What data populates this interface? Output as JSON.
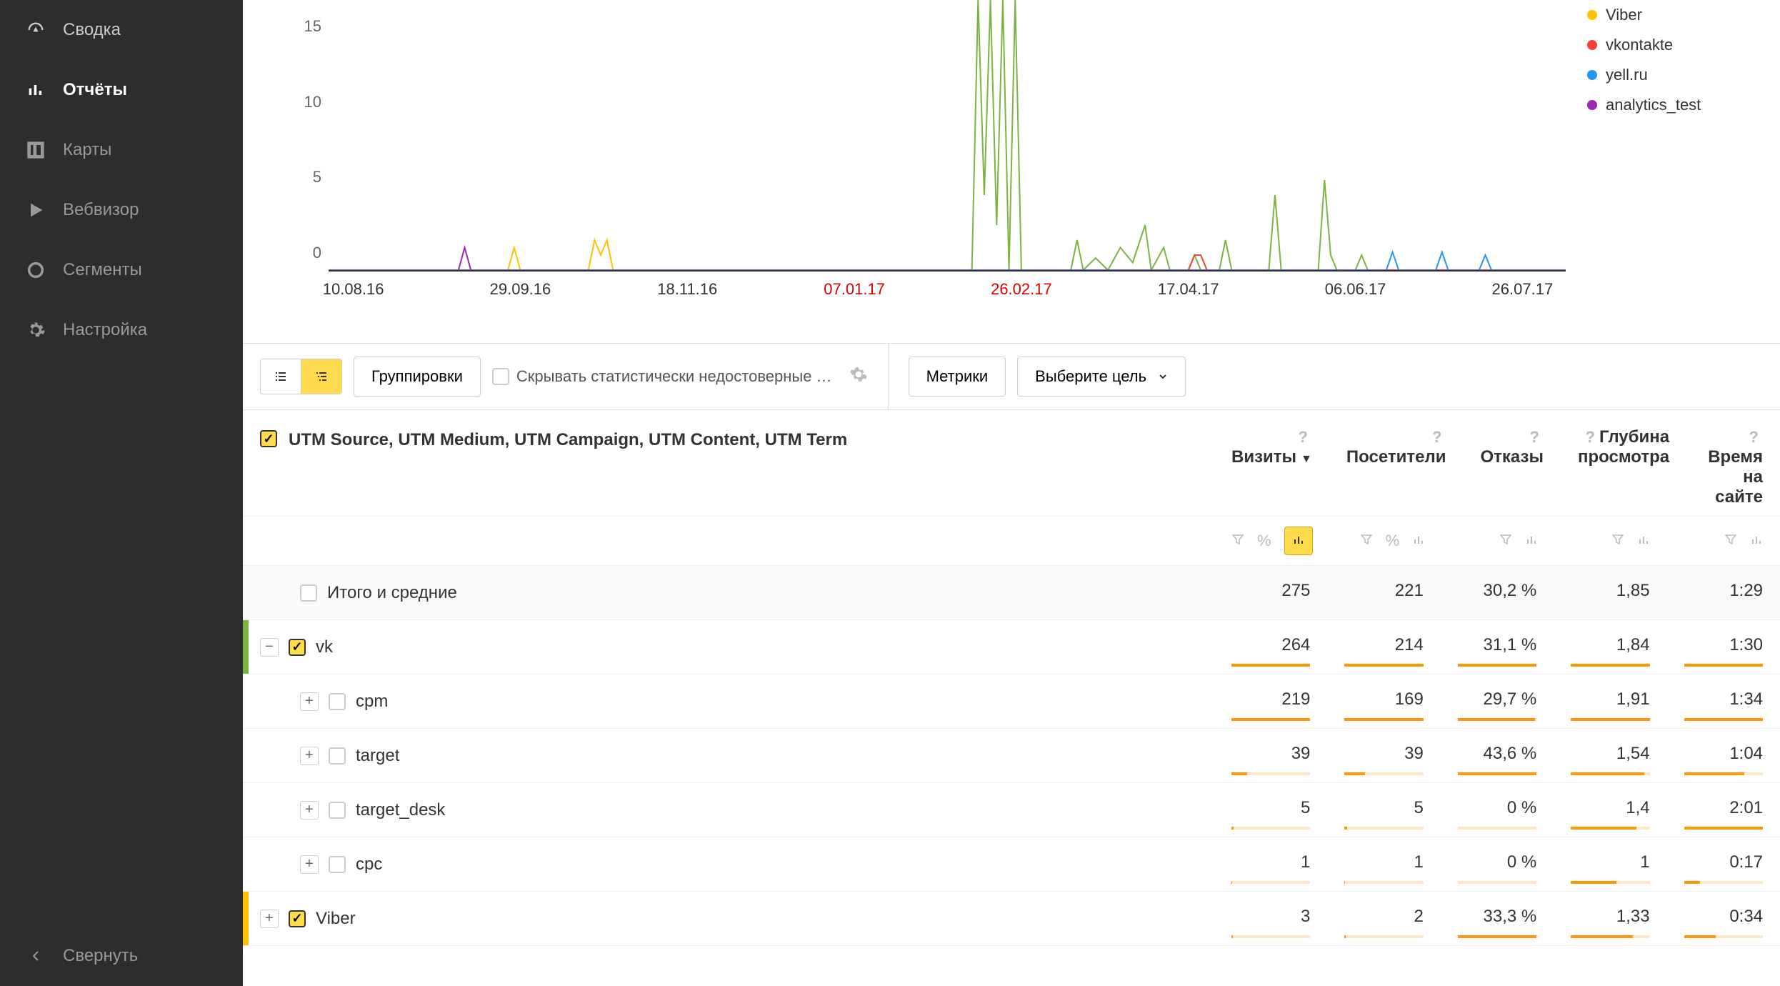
{
  "sidebar": {
    "items": [
      {
        "label": "Сводка",
        "icon": "gauge"
      },
      {
        "label": "Отчёты",
        "icon": "bars",
        "active": true
      },
      {
        "label": "Карты",
        "icon": "layout"
      },
      {
        "label": "Вебвизор",
        "icon": "play"
      },
      {
        "label": "Сегменты",
        "icon": "donut"
      },
      {
        "label": "Настройка",
        "icon": "gear"
      }
    ],
    "collapse_label": "Свернуть"
  },
  "chart": {
    "type": "line",
    "background_color": "#ffffff",
    "axis_color": "#333333",
    "axis_fontsize": 22,
    "ylim": [
      0,
      18
    ],
    "yticks": [
      0,
      5,
      10,
      15
    ],
    "xticks": [
      {
        "label": "10.08.16",
        "pos": 0.02,
        "red": false
      },
      {
        "label": "29.09.16",
        "pos": 0.155,
        "red": false
      },
      {
        "label": "18.11.16",
        "pos": 0.29,
        "red": false
      },
      {
        "label": "07.01.17",
        "pos": 0.425,
        "red": true
      },
      {
        "label": "26.02.17",
        "pos": 0.56,
        "red": true
      },
      {
        "label": "17.04.17",
        "pos": 0.695,
        "red": false
      },
      {
        "label": "06.06.17",
        "pos": 0.83,
        "red": false
      },
      {
        "label": "26.07.17",
        "pos": 0.965,
        "red": false
      }
    ],
    "legend": [
      {
        "label": "Viber",
        "color": "#ffc107"
      },
      {
        "label": "vkontakte",
        "color": "#f44336"
      },
      {
        "label": "yell.ru",
        "color": "#2196f3"
      },
      {
        "label": "analytics_test",
        "color": "#9c27b0"
      }
    ],
    "series": [
      {
        "name": "vk_green",
        "color": "#7cb342",
        "stroke_width": 2,
        "points": [
          [
            0.52,
            0
          ],
          [
            0.525,
            18
          ],
          [
            0.53,
            5
          ],
          [
            0.535,
            18
          ],
          [
            0.54,
            3
          ],
          [
            0.545,
            18
          ],
          [
            0.55,
            0
          ],
          [
            0.555,
            18
          ],
          [
            0.56,
            0
          ],
          [
            0.6,
            0
          ],
          [
            0.605,
            2
          ],
          [
            0.61,
            0
          ],
          [
            0.62,
            0.8
          ],
          [
            0.63,
            0
          ],
          [
            0.64,
            1.5
          ],
          [
            0.65,
            0.5
          ],
          [
            0.66,
            3
          ],
          [
            0.665,
            0
          ],
          [
            0.675,
            1.5
          ],
          [
            0.68,
            0
          ],
          [
            0.695,
            0
          ],
          [
            0.7,
            1
          ],
          [
            0.705,
            0
          ],
          [
            0.72,
            0
          ],
          [
            0.725,
            2
          ],
          [
            0.73,
            0
          ],
          [
            0.76,
            0
          ],
          [
            0.765,
            5
          ],
          [
            0.77,
            0
          ],
          [
            0.8,
            0
          ],
          [
            0.805,
            6
          ],
          [
            0.81,
            1
          ],
          [
            0.815,
            0
          ],
          [
            0.83,
            0
          ],
          [
            0.835,
            1
          ],
          [
            0.84,
            0
          ]
        ]
      },
      {
        "name": "analytics_test",
        "color": "#9c27b0",
        "stroke_width": 2,
        "points": [
          [
            0.0,
            0
          ],
          [
            0.105,
            0
          ],
          [
            0.11,
            1.5
          ],
          [
            0.115,
            0
          ],
          [
            1.0,
            0
          ]
        ]
      },
      {
        "name": "Viber",
        "color": "#ffc107",
        "stroke_width": 2,
        "points": [
          [
            0.0,
            0
          ],
          [
            0.145,
            0
          ],
          [
            0.15,
            1.5
          ],
          [
            0.155,
            0
          ],
          [
            0.21,
            0
          ],
          [
            0.215,
            2
          ],
          [
            0.22,
            1
          ],
          [
            0.225,
            2
          ],
          [
            0.23,
            0
          ],
          [
            1.0,
            0
          ]
        ]
      },
      {
        "name": "vkontakte",
        "color": "#f44336",
        "stroke_width": 2,
        "points": [
          [
            0.0,
            0
          ],
          [
            0.695,
            0
          ],
          [
            0.7,
            1
          ],
          [
            0.705,
            1
          ],
          [
            0.71,
            0
          ],
          [
            1.0,
            0
          ]
        ]
      },
      {
        "name": "yell.ru",
        "color": "#2196f3",
        "stroke_width": 2,
        "points": [
          [
            0.0,
            0
          ],
          [
            0.855,
            0
          ],
          [
            0.86,
            1.2
          ],
          [
            0.865,
            0
          ],
          [
            0.895,
            0
          ],
          [
            0.9,
            1.2
          ],
          [
            0.905,
            0
          ],
          [
            0.93,
            0
          ],
          [
            0.935,
            1
          ],
          [
            0.94,
            0
          ],
          [
            1.0,
            0
          ]
        ]
      }
    ]
  },
  "toolbar": {
    "grouping_btn": "Группировки",
    "hide_unreliable_label": "Скрывать статистически недостоверные …",
    "metrics_btn": "Метрики",
    "goal_btn": "Выберите цель"
  },
  "table": {
    "dim_header": "UTM Source, UTM Medium, UTM Campaign, UTM Content, UTM Term",
    "columns": [
      {
        "label": "Визиты",
        "sorted": true
      },
      {
        "label": "Посетители"
      },
      {
        "label": "Отказы"
      },
      {
        "label": "Глубина просмотра"
      },
      {
        "label": "Время на сайте"
      }
    ],
    "totals_label": "Итого и средние",
    "totals": [
      "275",
      "221",
      "30,2 %",
      "1,85",
      "1:29"
    ],
    "rows": [
      {
        "label": "vk",
        "indent": 0,
        "checked": true,
        "expanded": true,
        "marker": "green",
        "values": [
          "264",
          "214",
          "31,1 %",
          "1,84",
          "1:30"
        ],
        "bars": [
          0.96,
          0.97,
          0.72,
          0.8,
          0.75
        ]
      },
      {
        "label": "cpm",
        "indent": 1,
        "checked": false,
        "expanded": false,
        "values": [
          "219",
          "169",
          "29,7 %",
          "1,91",
          "1:34"
        ],
        "bars": [
          0.8,
          0.77,
          0.68,
          0.84,
          0.78
        ]
      },
      {
        "label": "target",
        "indent": 1,
        "checked": false,
        "expanded": false,
        "values": [
          "39",
          "39",
          "43,6 %",
          "1,54",
          "1:04"
        ],
        "bars": [
          0.14,
          0.18,
          1.0,
          0.65,
          0.53
        ]
      },
      {
        "label": "target_desk",
        "indent": 1,
        "checked": false,
        "expanded": false,
        "values": [
          "5",
          "5",
          "0 %",
          "1,4",
          "2:01"
        ],
        "bars": [
          0.02,
          0.02,
          0.0,
          0.58,
          1.0
        ]
      },
      {
        "label": "cpc",
        "indent": 1,
        "checked": false,
        "expanded": false,
        "values": [
          "1",
          "1",
          "0 %",
          "1",
          "0:17"
        ],
        "bars": [
          0.004,
          0.005,
          0.0,
          0.4,
          0.14
        ]
      },
      {
        "label": "Viber",
        "indent": 0,
        "checked": true,
        "expanded": false,
        "marker": "yellow",
        "values": [
          "3",
          "2",
          "33,3 %",
          "1,33",
          "0:34"
        ],
        "bars": [
          0.01,
          0.01,
          0.76,
          0.55,
          0.28
        ]
      }
    ]
  }
}
